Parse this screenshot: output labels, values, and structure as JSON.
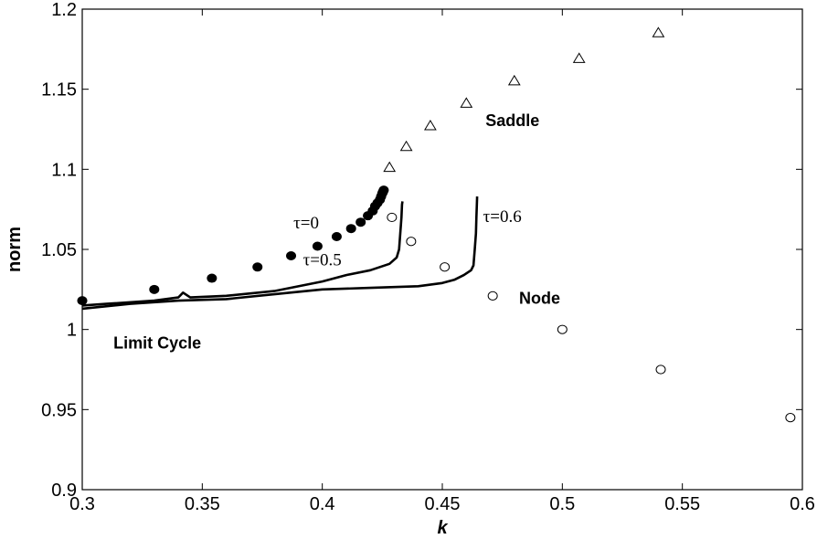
{
  "chart_data": {
    "type": "scatter",
    "title": "",
    "xlabel": "k",
    "ylabel": "norm",
    "xlim": [
      0.3,
      0.6
    ],
    "ylim": [
      0.9,
      1.2
    ],
    "xticks": [
      "0.3",
      "0.35",
      "0.4",
      "0.45",
      "0.5",
      "0.55",
      "0.6"
    ],
    "yticks": [
      "0.9",
      "0.95",
      "1",
      "1.05",
      "1.1",
      "1.15",
      "1.2"
    ],
    "grid": false,
    "legend": "none",
    "series": [
      {
        "marker": "filled-circle",
        "points": [
          [
            0.3,
            1.018
          ],
          [
            0.33,
            1.025
          ],
          [
            0.354,
            1.032
          ],
          [
            0.373,
            1.039
          ],
          [
            0.387,
            1.046
          ],
          [
            0.398,
            1.052
          ],
          [
            0.406,
            1.058
          ],
          [
            0.412,
            1.063
          ],
          [
            0.416,
            1.067
          ],
          [
            0.419,
            1.071
          ],
          [
            0.421,
            1.074
          ],
          [
            0.422,
            1.077
          ],
          [
            0.423,
            1.079
          ],
          [
            0.424,
            1.081
          ],
          [
            0.4245,
            1.083
          ],
          [
            0.425,
            1.085
          ],
          [
            0.4253,
            1.086
          ],
          [
            0.4256,
            1.087
          ]
        ]
      },
      {
        "marker": "open-triangle",
        "points": [
          [
            0.428,
            1.101
          ],
          [
            0.435,
            1.114
          ],
          [
            0.445,
            1.127
          ],
          [
            0.46,
            1.141
          ],
          [
            0.48,
            1.155
          ],
          [
            0.507,
            1.169
          ],
          [
            0.54,
            1.185
          ]
        ]
      },
      {
        "marker": "open-circle",
        "points": [
          [
            0.429,
            1.07
          ],
          [
            0.437,
            1.055
          ],
          [
            0.451,
            1.039
          ],
          [
            0.471,
            1.021
          ],
          [
            0.5,
            1.0
          ],
          [
            0.541,
            0.975
          ],
          [
            0.595,
            0.945
          ]
        ]
      },
      {
        "style": "line",
        "points": [
          [
            0.3,
            1.015
          ],
          [
            0.31,
            1.016
          ],
          [
            0.33,
            1.018
          ],
          [
            0.34,
            1.02
          ],
          [
            0.342,
            1.023
          ],
          [
            0.345,
            1.02
          ],
          [
            0.36,
            1.021
          ],
          [
            0.38,
            1.024
          ],
          [
            0.4,
            1.03
          ],
          [
            0.41,
            1.034
          ],
          [
            0.42,
            1.037
          ],
          [
            0.428,
            1.041
          ],
          [
            0.431,
            1.045
          ],
          [
            0.432,
            1.05
          ],
          [
            0.4325,
            1.06
          ],
          [
            0.433,
            1.07
          ],
          [
            0.4332,
            1.078
          ],
          [
            0.4334,
            1.08
          ]
        ]
      },
      {
        "style": "line",
        "points": [
          [
            0.3,
            1.013
          ],
          [
            0.32,
            1.016
          ],
          [
            0.34,
            1.018
          ],
          [
            0.36,
            1.019
          ],
          [
            0.38,
            1.022
          ],
          [
            0.4,
            1.025
          ],
          [
            0.42,
            1.026
          ],
          [
            0.44,
            1.027
          ],
          [
            0.45,
            1.029
          ],
          [
            0.455,
            1.031
          ],
          [
            0.459,
            1.034
          ],
          [
            0.462,
            1.037
          ],
          [
            0.463,
            1.04
          ],
          [
            0.4635,
            1.05
          ],
          [
            0.464,
            1.06
          ],
          [
            0.4642,
            1.07
          ],
          [
            0.4644,
            1.078
          ],
          [
            0.4645,
            1.083
          ]
        ]
      }
    ],
    "annotations": [
      {
        "text": "Saddle",
        "x": 0.468,
        "y": 1.127,
        "kind": "region"
      },
      {
        "text": "Node",
        "x": 0.482,
        "y": 1.016,
        "kind": "region"
      },
      {
        "text": "Limit Cycle",
        "x": 0.313,
        "y": 0.988,
        "kind": "region"
      },
      {
        "text": "τ=0",
        "x": 0.388,
        "y": 1.063,
        "kind": "tau"
      },
      {
        "text": "τ=0.5",
        "x": 0.392,
        "y": 1.04,
        "kind": "tau"
      },
      {
        "text": "τ=0.6",
        "x": 0.467,
        "y": 1.067,
        "kind": "tau"
      }
    ]
  }
}
